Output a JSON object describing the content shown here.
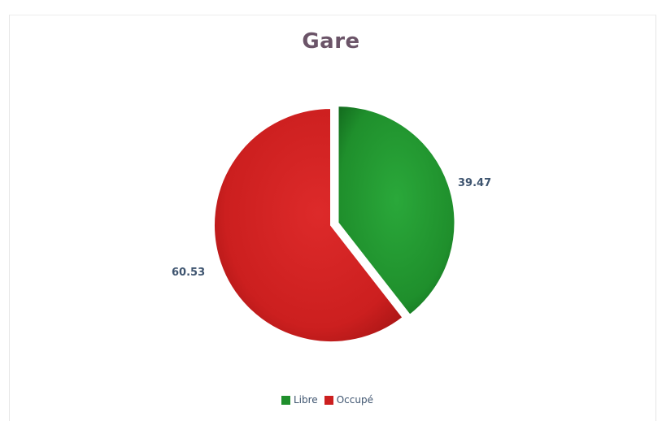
{
  "chart_data": {
    "type": "pie",
    "title": "Gare",
    "categories": [
      "Libre",
      "Occupé"
    ],
    "values": [
      39.47,
      60.53
    ],
    "data_labels": [
      "39.47",
      "60.53"
    ],
    "colors": [
      "#1f8f2c",
      "#cc1f1f"
    ],
    "exploded_slice": "Libre",
    "legend_position": "bottom"
  }
}
